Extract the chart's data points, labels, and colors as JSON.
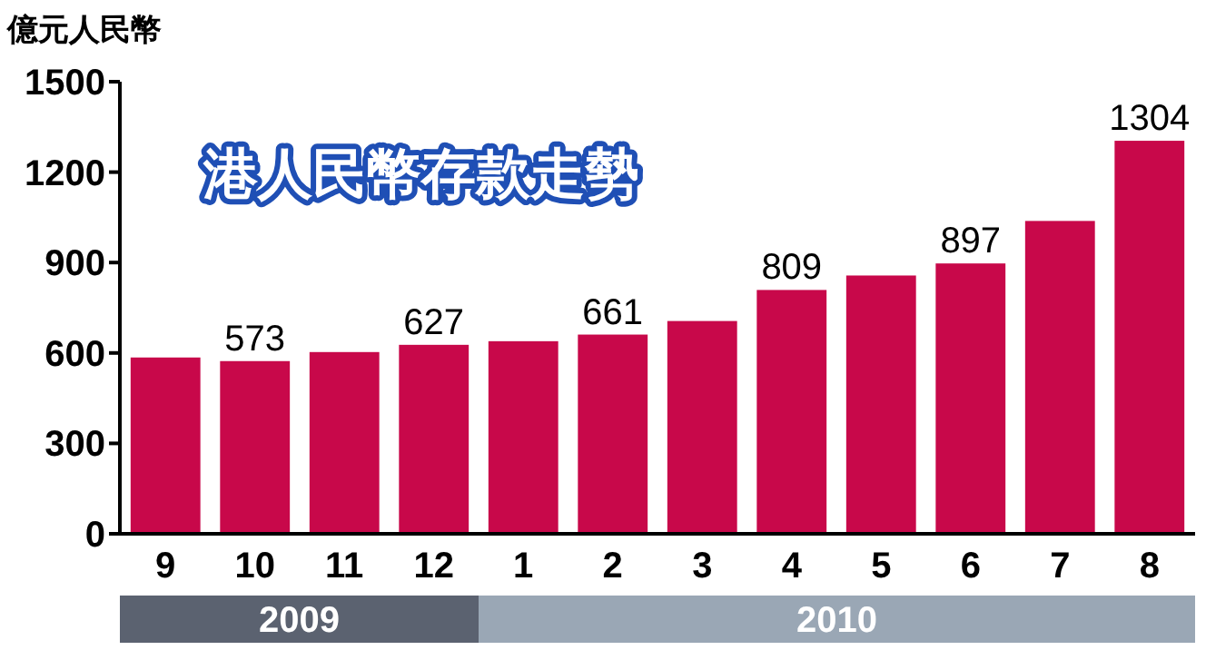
{
  "chart_data": {
    "type": "bar",
    "title": "港人民幣存款走勢",
    "ylabel": "億元人民幣",
    "categories": [
      "9",
      "10",
      "11",
      "12",
      "1",
      "2",
      "3",
      "4",
      "5",
      "6",
      "7",
      "8"
    ],
    "values": [
      585,
      573,
      603,
      627,
      639,
      661,
      706,
      809,
      857,
      897,
      1038,
      1304
    ],
    "value_labels": [
      null,
      "573",
      null,
      "627",
      null,
      "661",
      null,
      "809",
      null,
      "897",
      null,
      "1304"
    ],
    "color": "#c8084a",
    "ylim": [
      0,
      1500
    ],
    "yticks": [
      0,
      300,
      600,
      900,
      1200,
      1500
    ],
    "grid": false,
    "annotations": [
      "2009",
      "2010"
    ]
  }
}
